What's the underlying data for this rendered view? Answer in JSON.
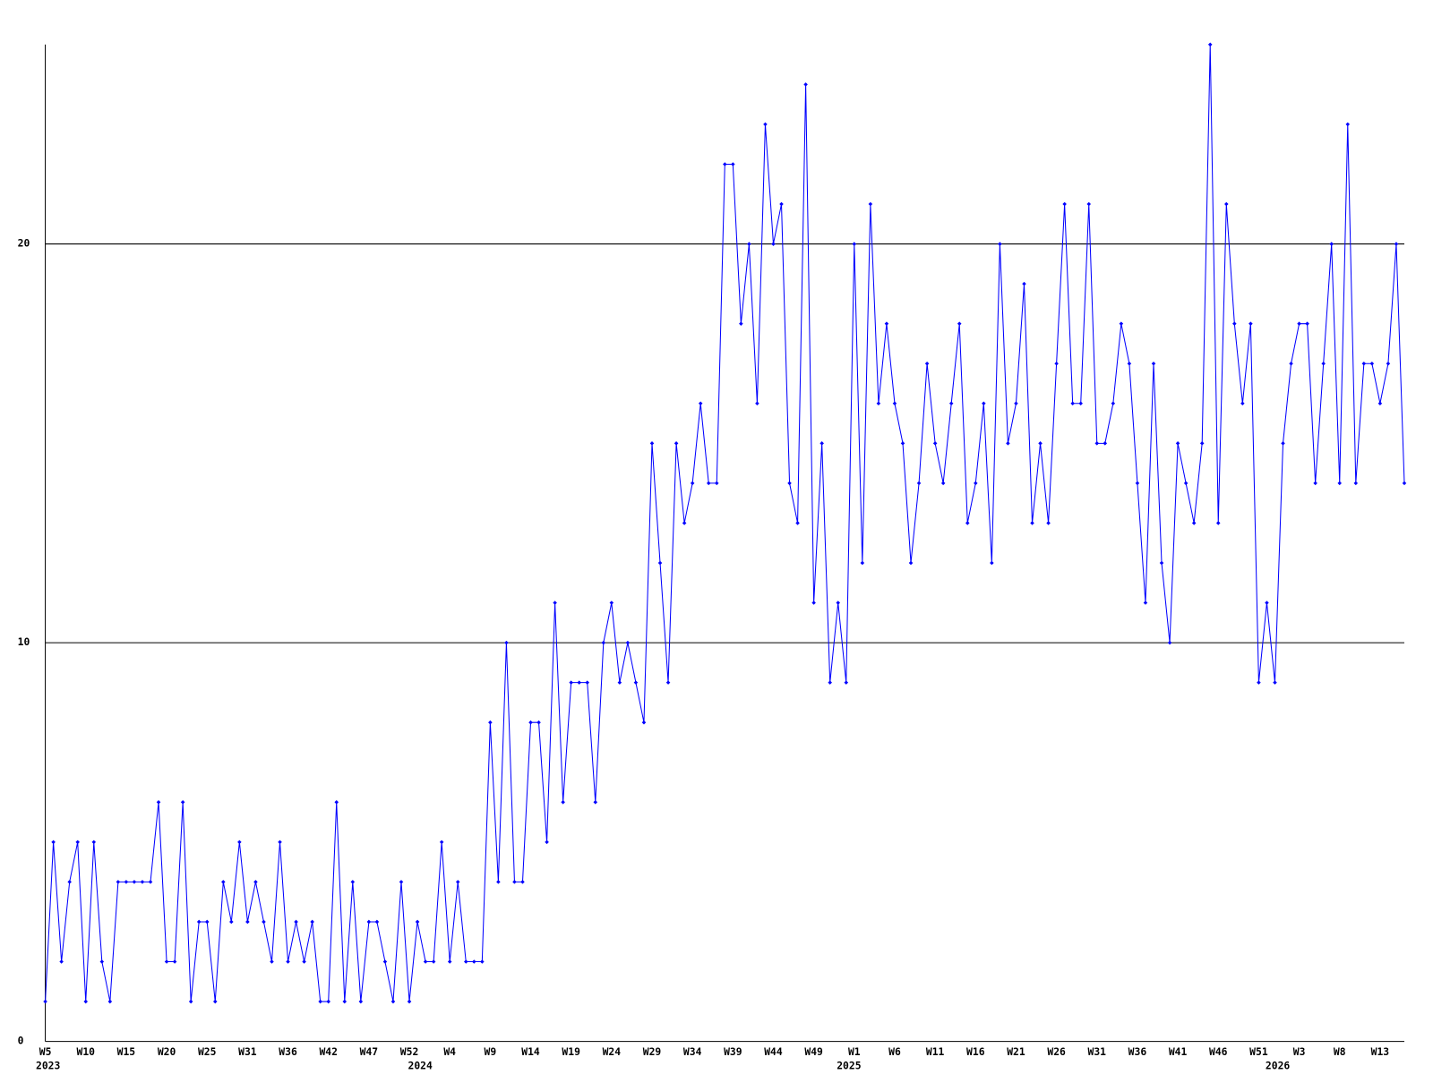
{
  "chart_data": {
    "type": "line",
    "color": "#0000ff",
    "grid": true,
    "ylim": [
      0,
      25
    ],
    "yticks": [
      0,
      10,
      20
    ],
    "categories": [
      "W5",
      null,
      null,
      null,
      null,
      "W10",
      null,
      null,
      null,
      null,
      "W15",
      null,
      null,
      null,
      null,
      "W20",
      null,
      null,
      null,
      null,
      "W25",
      null,
      null,
      null,
      null,
      "W31",
      null,
      null,
      null,
      null,
      "W36",
      null,
      null,
      null,
      null,
      "W42",
      null,
      null,
      null,
      null,
      "W47",
      null,
      null,
      null,
      null,
      "W52",
      null,
      null,
      null,
      null,
      "W4",
      null,
      null,
      null,
      null,
      "W9",
      null,
      null,
      null,
      null,
      "W14",
      null,
      null,
      null,
      null,
      "W19",
      null,
      null,
      null,
      null,
      "W24",
      null,
      null,
      null,
      null,
      "W29",
      null,
      null,
      null,
      null,
      "W34",
      null,
      null,
      null,
      null,
      "W39",
      null,
      null,
      null,
      null,
      "W44",
      null,
      null,
      null,
      null,
      "W49",
      null,
      null,
      null,
      null,
      "W1",
      null,
      null,
      null,
      null,
      "W6",
      null,
      null,
      null,
      null,
      "W11",
      null,
      null,
      null,
      null,
      "W16",
      null,
      null,
      null,
      null,
      "W21",
      null,
      null,
      null,
      null,
      "W26",
      null,
      null,
      null,
      null,
      "W31",
      null,
      null,
      null,
      null,
      "W36",
      null,
      null,
      null,
      null,
      "W41",
      null,
      null,
      null,
      null,
      "W46",
      null,
      null,
      null,
      null,
      "W51",
      null,
      null,
      null,
      null,
      "W3",
      null,
      null,
      null,
      null,
      "W8",
      null,
      null,
      null,
      null,
      "W13",
      null,
      null,
      null
    ],
    "category_years": [
      "2023",
      null,
      null,
      null,
      null,
      null,
      null,
      null,
      null,
      null,
      null,
      null,
      null,
      null,
      null,
      null,
      null,
      null,
      null,
      null,
      null,
      null,
      null,
      null,
      null,
      null,
      null,
      null,
      null,
      null,
      null,
      null,
      null,
      null,
      null,
      null,
      null,
      null,
      null,
      null,
      null,
      null,
      null,
      null,
      null,
      null,
      "2024",
      null,
      null,
      null,
      null,
      null,
      null,
      null,
      null,
      null,
      null,
      null,
      null,
      null,
      null,
      null,
      null,
      null,
      null,
      null,
      null,
      null,
      null,
      null,
      null,
      null,
      null,
      null,
      null,
      null,
      null,
      null,
      null,
      null,
      null,
      null,
      null,
      null,
      null,
      null,
      null,
      null,
      null,
      null,
      null,
      null,
      null,
      null,
      null,
      null,
      null,
      null,
      null,
      "2025",
      null,
      null,
      null,
      null,
      null,
      null,
      null,
      null,
      null,
      null,
      null,
      null,
      null,
      null,
      null,
      null,
      null,
      null,
      null,
      null,
      null,
      null,
      null,
      null,
      null,
      null,
      null,
      null,
      null,
      null,
      null,
      null,
      null,
      null,
      null,
      null,
      null,
      null,
      null,
      null,
      null,
      null,
      null,
      null,
      null,
      null,
      null,
      null,
      null,
      null,
      null,
      null,
      "2026",
      null,
      null,
      null,
      null,
      null,
      null,
      null,
      null,
      null,
      null,
      null,
      null,
      null,
      null,
      null,
      null
    ],
    "values": [
      1,
      5,
      2,
      4,
      5,
      1,
      5,
      2,
      1,
      4,
      4,
      4,
      4,
      4,
      6,
      2,
      2,
      6,
      1,
      3,
      3,
      1,
      4,
      3,
      5,
      3,
      4,
      3,
      2,
      5,
      2,
      3,
      2,
      3,
      1,
      1,
      6,
      1,
      4,
      1,
      3,
      3,
      2,
      1,
      4,
      1,
      3,
      2,
      2,
      5,
      2,
      4,
      2,
      2,
      2,
      8,
      4,
      10,
      4,
      4,
      8,
      8,
      5,
      11,
      6,
      9,
      9,
      9,
      6,
      10,
      11,
      9,
      10,
      9,
      8,
      15,
      12,
      9,
      15,
      13,
      14,
      16,
      14,
      14,
      22,
      22,
      18,
      20,
      16,
      23,
      20,
      21,
      14,
      13,
      24,
      11,
      15,
      9,
      11,
      9,
      20,
      12,
      21,
      16,
      18,
      16,
      15,
      12,
      14,
      17,
      15,
      14,
      16,
      18,
      13,
      14,
      16,
      12,
      20,
      15,
      16,
      19,
      13,
      15,
      13,
      17,
      21,
      16,
      16,
      21,
      15,
      15,
      16,
      18,
      17,
      14,
      11,
      17,
      12,
      10,
      15,
      14,
      13,
      15,
      25,
      13,
      21,
      18,
      16,
      18,
      9,
      11,
      9,
      15,
      17,
      18,
      18,
      14,
      17,
      20,
      14,
      23,
      14,
      17,
      17,
      16,
      17,
      20,
      14
    ]
  }
}
